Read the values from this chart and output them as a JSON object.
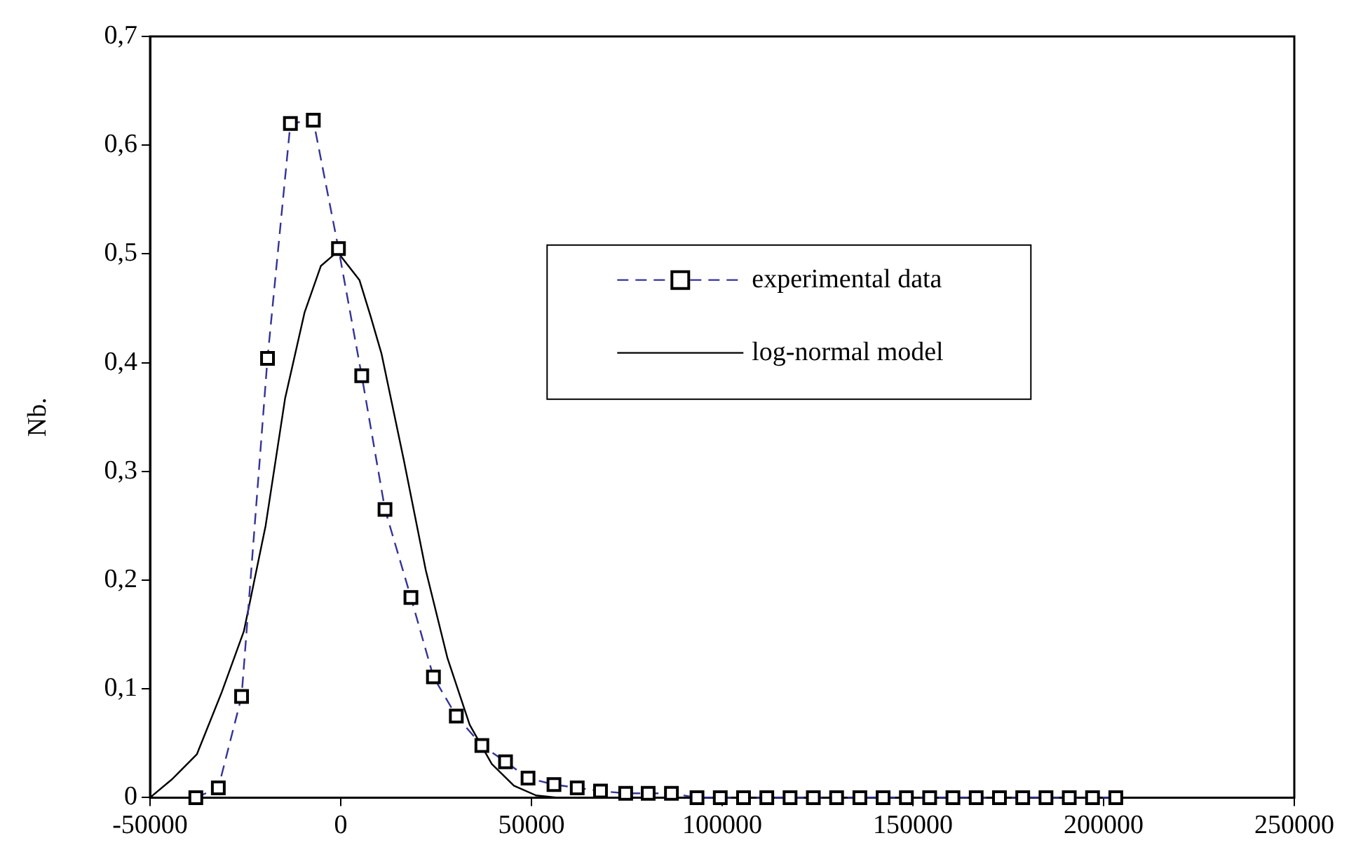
{
  "chart_data": {
    "type": "line",
    "ylabel": "Nb.",
    "xlim": [
      -50000,
      250000
    ],
    "xticks": [
      -50000,
      0,
      50000,
      100000,
      150000,
      200000,
      250000
    ],
    "ylim": [
      0,
      0.7
    ],
    "yticks": [
      0,
      {
        "value": 0.1,
        "label": "0,1"
      },
      {
        "value": 0.2,
        "label": "0,2"
      },
      {
        "value": 0.3,
        "label": "0,3"
      },
      {
        "value": 0.4,
        "label": "0,4"
      },
      {
        "value": 0.5,
        "label": "0,5"
      },
      {
        "value": 0.6,
        "label": "0,6"
      },
      {
        "value": 0.7,
        "label": "0,7"
      }
    ],
    "grid": false,
    "legend": "right",
    "series": [
      {
        "name": "experimental data",
        "color": "#333399",
        "marker": "square",
        "line_style": "dashed",
        "x": [
          -38000,
          -32100,
          -26000,
          -19200,
          -13200,
          -7200,
          -600,
          5500,
          11600,
          18400,
          24300,
          30300,
          37000,
          43200,
          49100,
          55900,
          62000,
          68100,
          74700,
          80600,
          86700,
          93400,
          99500,
          105600,
          111700,
          117800,
          123900,
          130000,
          136100,
          142200,
          148300,
          154400,
          160500,
          166600,
          172700,
          178800,
          184900,
          191000,
          197100,
          203200
        ],
        "values": [
          0,
          0.009,
          0.093,
          0.404,
          0.62,
          0.623,
          0.505,
          0.388,
          0.265,
          0.184,
          0.111,
          0.075,
          0.048,
          0.033,
          0.018,
          0.012,
          0.009,
          0.006,
          0.004,
          0.004,
          0.004,
          0,
          0,
          0,
          0,
          0,
          0,
          0,
          0,
          0,
          0,
          0,
          0,
          0,
          0,
          0,
          0,
          0,
          0,
          0
        ]
      },
      {
        "name": "log-normal model",
        "color": "#000000",
        "marker": "none",
        "line_style": "solid",
        "x": [
          -50000,
          -44200,
          -37700,
          -31200,
          -25400,
          -19700,
          -14600,
          -9500,
          -5200,
          -900,
          4900,
          7800,
          10700,
          16500,
          22300,
          28000,
          33800,
          39600,
          45400,
          51200,
          56900,
          204800
        ],
        "values": [
          0,
          0.017,
          0.04,
          0.097,
          0.153,
          0.25,
          0.367,
          0.446,
          0.489,
          0.502,
          0.476,
          0.443,
          0.408,
          0.311,
          0.209,
          0.128,
          0.067,
          0.031,
          0.011,
          0.002,
          0,
          0
        ]
      }
    ]
  }
}
